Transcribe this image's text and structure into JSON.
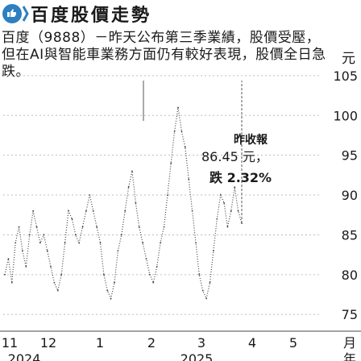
{
  "header": {
    "title": "百度股價走勢",
    "logo_icon": "thumbs-logo-icon"
  },
  "description": "百度（9888）－昨天公布第三季業績，股價受壓，但在AI與智能車業務方面仍有較好表現，股價全日急跌。",
  "y_unit": "元",
  "chart_data": {
    "type": "line",
    "ylim": [
      73,
      106
    ],
    "yticks": [
      75,
      80,
      85,
      90,
      95,
      100,
      105
    ],
    "x_month_ticks": [
      "11",
      "12",
      "1",
      "2",
      "3",
      "4",
      "5"
    ],
    "x_month_unit": "月",
    "x_year_ticks": [
      "2024",
      "2025"
    ],
    "x_year_unit": "年",
    "grid": "horizontal dotted",
    "series": [
      {
        "values": [
          80,
          82,
          79,
          84,
          86,
          83,
          81,
          85,
          88,
          86,
          84,
          85,
          83,
          81,
          79,
          78,
          80,
          84,
          88,
          87,
          85,
          84,
          86,
          88,
          90,
          88,
          86,
          84,
          80,
          78,
          77,
          79,
          83,
          85,
          88,
          91,
          93,
          89,
          86,
          84,
          82,
          80,
          79,
          81,
          84,
          86,
          90,
          94,
          98,
          101,
          98,
          96,
          92,
          88,
          84,
          80,
          78,
          77,
          79,
          83,
          87,
          90,
          89,
          86,
          88,
          91,
          88,
          86.45
        ]
      }
    ],
    "annotation": {
      "label": "昨收報",
      "value_text": "86.45 元，",
      "change_text": "跌 2.32%"
    }
  }
}
